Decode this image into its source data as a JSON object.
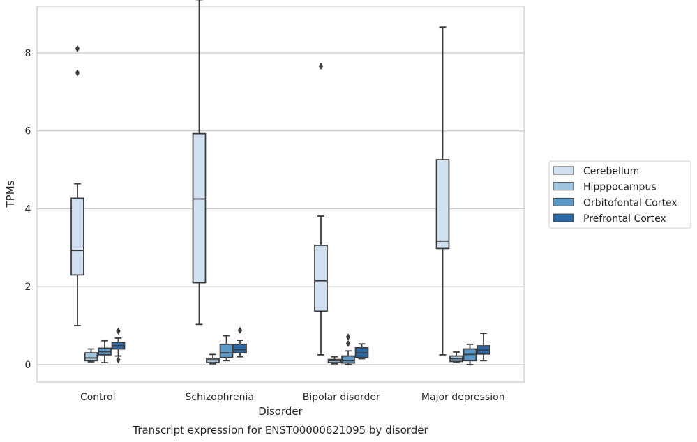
{
  "chart_data": {
    "type": "box",
    "xlabel": "Disorder",
    "ylabel": "TPMs",
    "caption": "Transcript expression for ENST00000621095 by disorder",
    "ylim": [
      -0.45,
      9.2
    ],
    "yticks": [
      0,
      2,
      4,
      6,
      8
    ],
    "grid": "horizontal",
    "legend_position": "right",
    "categories": [
      "Control",
      "Schizophrenia",
      "Bipolar disorder",
      "Major depression"
    ],
    "series": [
      {
        "name": "Cerebellum",
        "color": "#d0e0f1",
        "boxes": [
          {
            "whislo": 1.0,
            "q1": 2.3,
            "med": 2.93,
            "q3": 4.27,
            "whishi": 4.64,
            "fliers": [
              7.49,
              8.11
            ]
          },
          {
            "whislo": 1.03,
            "q1": 2.1,
            "med": 4.25,
            "q3": 5.93,
            "whishi": 9.37,
            "fliers": []
          },
          {
            "whislo": 0.25,
            "q1": 1.37,
            "med": 2.15,
            "q3": 3.06,
            "whishi": 3.81,
            "fliers": [
              7.66
            ]
          },
          {
            "whislo": 0.25,
            "q1": 2.98,
            "med": 3.17,
            "q3": 5.26,
            "whishi": 8.66,
            "fliers": []
          }
        ]
      },
      {
        "name": "Hipppocampus",
        "color": "#9ec4e0",
        "boxes": [
          {
            "whislo": 0.07,
            "q1": 0.1,
            "med": 0.17,
            "q3": 0.3,
            "whishi": 0.4,
            "fliers": []
          },
          {
            "whislo": 0.02,
            "q1": 0.05,
            "med": 0.12,
            "q3": 0.16,
            "whishi": 0.26,
            "fliers": []
          },
          {
            "whislo": 0.02,
            "q1": 0.05,
            "med": 0.1,
            "q3": 0.13,
            "whishi": 0.2,
            "fliers": []
          },
          {
            "whislo": 0.05,
            "q1": 0.08,
            "med": 0.15,
            "q3": 0.22,
            "whishi": 0.32,
            "fliers": []
          }
        ]
      },
      {
        "name": "Orbitofontal Cortex",
        "color": "#5a99c7",
        "boxes": [
          {
            "whislo": 0.05,
            "q1": 0.25,
            "med": 0.33,
            "q3": 0.42,
            "whishi": 0.61,
            "fliers": []
          },
          {
            "whislo": 0.1,
            "q1": 0.18,
            "med": 0.3,
            "q3": 0.52,
            "whishi": 0.74,
            "fliers": []
          },
          {
            "whislo": 0.0,
            "q1": 0.04,
            "med": 0.1,
            "q3": 0.22,
            "whishi": 0.35,
            "fliers": [
              0.54,
              0.71
            ]
          },
          {
            "whislo": 0.0,
            "q1": 0.1,
            "med": 0.26,
            "q3": 0.4,
            "whishi": 0.52,
            "fliers": []
          }
        ]
      },
      {
        "name": "Prefrontal Cortex",
        "color": "#2a69a6",
        "boxes": [
          {
            "whislo": 0.22,
            "q1": 0.4,
            "med": 0.48,
            "q3": 0.57,
            "whishi": 0.68,
            "fliers": [
              0.12,
              0.86
            ]
          },
          {
            "whislo": 0.2,
            "q1": 0.3,
            "med": 0.38,
            "q3": 0.52,
            "whishi": 0.62,
            "fliers": [
              0.88
            ]
          },
          {
            "whislo": 0.15,
            "q1": 0.18,
            "med": 0.3,
            "q3": 0.43,
            "whishi": 0.53,
            "fliers": []
          },
          {
            "whislo": 0.1,
            "q1": 0.27,
            "med": 0.37,
            "q3": 0.48,
            "whishi": 0.8,
            "fliers": []
          }
        ]
      }
    ]
  }
}
